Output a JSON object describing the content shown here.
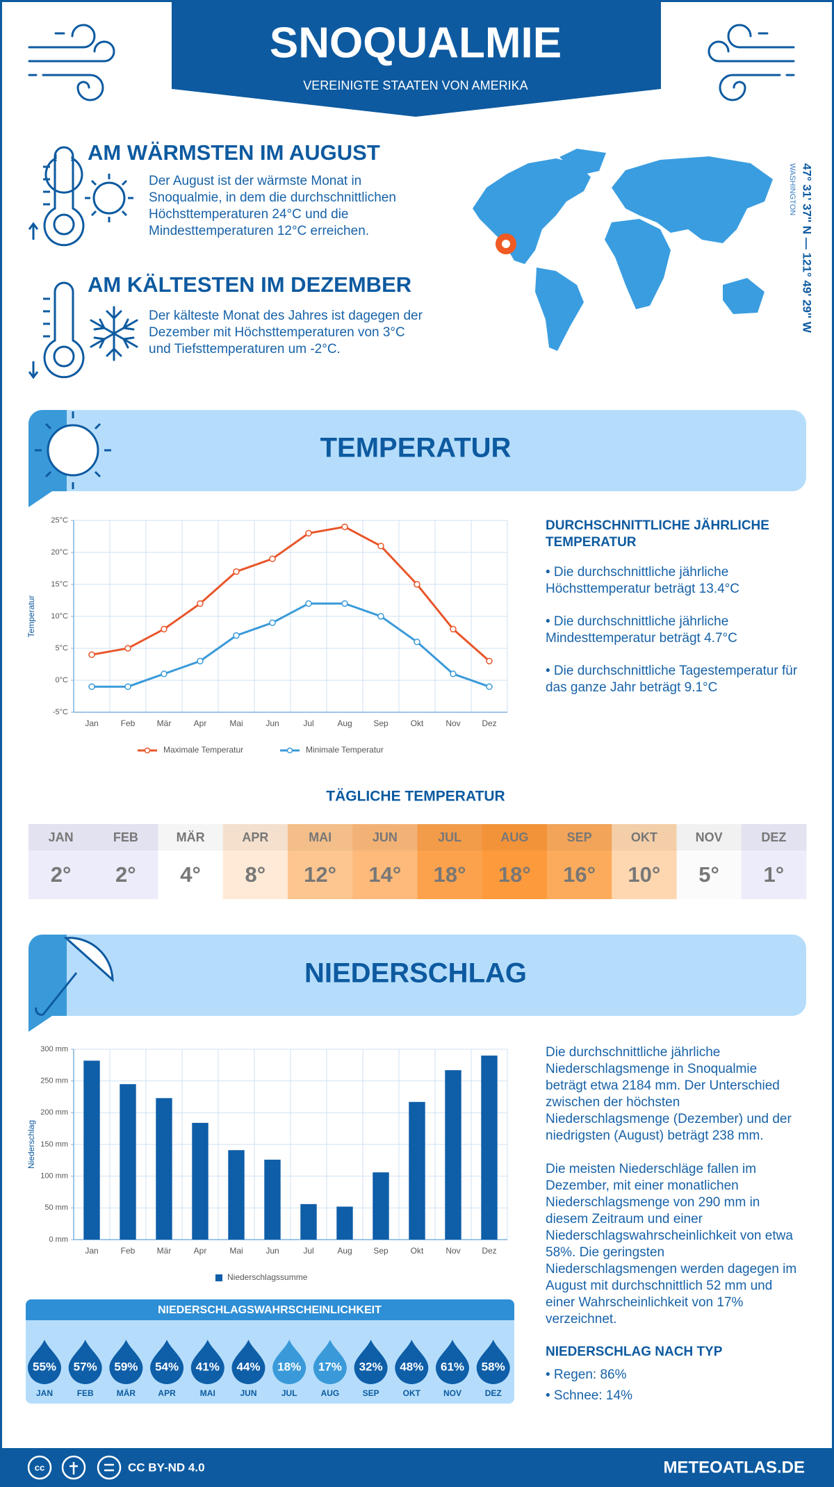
{
  "header": {
    "title": "SNOQUALMIE",
    "subtitle": "VEREINIGTE STAATEN VON AMERIKA"
  },
  "warmest": {
    "title": "AM WÄRMSTEN IM AUGUST",
    "text": "Der August ist der wärmste Monat in Snoqualmie, in dem die durchschnittlichen Höchsttemperaturen 24°C und die Mindesttemperaturen 12°C erreichen."
  },
  "coldest": {
    "title": "AM KÄLTESTEN IM DEZEMBER",
    "text": "Der kälteste Monat des Jahres ist dagegen der Dezember mit Höchsttemperaturen von 3°C und Tiefsttemperaturen um -2°C."
  },
  "location": {
    "coordinates": "47° 31' 37'' N — 121° 49' 29'' W",
    "region": "WASHINGTON"
  },
  "temperature_section": {
    "title": "TEMPERATUR"
  },
  "chart_data": [
    {
      "type": "line",
      "y_label": "Temperatur",
      "categories": [
        "Jan",
        "Feb",
        "Mär",
        "Apr",
        "Mai",
        "Jun",
        "Jul",
        "Aug",
        "Sep",
        "Okt",
        "Nov",
        "Dez"
      ],
      "series": [
        {
          "name": "Maximale Temperatur",
          "color": "#e8562a",
          "values": [
            4,
            5,
            8,
            12,
            17,
            19,
            23,
            24,
            21,
            15,
            8,
            3
          ]
        },
        {
          "name": "Minimale Temperatur",
          "color": "#3a9ad9",
          "values": [
            -1,
            -1,
            1,
            3,
            7,
            9,
            12,
            12,
            10,
            6,
            1,
            -1
          ]
        }
      ],
      "ylim": [
        -5,
        25
      ],
      "yticks": [
        {
          "value": -5,
          "label": "-5°C"
        },
        {
          "value": 0,
          "label": "0°C"
        },
        {
          "value": 5,
          "label": "5°C"
        },
        {
          "value": 10,
          "label": "10°C"
        },
        {
          "value": 15,
          "label": "15°C"
        },
        {
          "value": 20,
          "label": "20°C"
        },
        {
          "value": 25,
          "label": "25°C"
        }
      ],
      "grid": true
    },
    {
      "type": "bar",
      "y_label": "Niederschlag",
      "categories": [
        "Jan",
        "Feb",
        "Mär",
        "Apr",
        "Mai",
        "Jun",
        "Jul",
        "Aug",
        "Sep",
        "Okt",
        "Nov",
        "Dez"
      ],
      "series": [
        {
          "name": "Niederschlagssumme",
          "color": "#0e5ea8",
          "values": [
            282,
            245,
            223,
            184,
            141,
            126,
            56,
            52,
            106,
            217,
            267,
            290
          ]
        }
      ],
      "ylim": [
        0,
        300
      ],
      "yticks": [
        {
          "value": 0,
          "label": "0 mm"
        },
        {
          "value": 50,
          "label": "50 mm"
        },
        {
          "value": 100,
          "label": "100 mm"
        },
        {
          "value": 150,
          "label": "150 mm"
        },
        {
          "value": 200,
          "label": "200 mm"
        },
        {
          "value": 250,
          "label": "250 mm"
        },
        {
          "value": 300,
          "label": "300 mm"
        }
      ],
      "grid": true
    }
  ],
  "annual_temperature": {
    "title": "DURCHSCHNITTLICHE JÄHRLICHE TEMPERATUR",
    "items": [
      "• Die durchschnittliche jährliche Höchsttemperatur beträgt 13.4°C",
      "• Die durchschnittliche jährliche Mindesttemperatur beträgt 4.7°C",
      "• Die durchschnittliche Tagestemperatur für das ganze Jahr beträgt 9.1°C"
    ]
  },
  "daily_temperature": {
    "title": "TÄGLICHE TEMPERATUR",
    "months": [
      "JAN",
      "FEB",
      "MÄR",
      "APR",
      "MAI",
      "JUN",
      "JUL",
      "AUG",
      "SEP",
      "OKT",
      "NOV",
      "DEZ"
    ],
    "values": [
      "2°",
      "2°",
      "4°",
      "8°",
      "12°",
      "14°",
      "18°",
      "18°",
      "16°",
      "10°",
      "5°",
      "1°"
    ],
    "colors": [
      "#ececfa",
      "#ececfa",
      "#ffffff",
      "#feead6",
      "#fdc690",
      "#fdba7a",
      "#fca24c",
      "#fd9a3c",
      "#fcab5c",
      "#fed7b0",
      "#fbfbfb",
      "#ececfa"
    ]
  },
  "precipitation_section": {
    "title": "NIEDERSCHLAG"
  },
  "precipitation_text": {
    "paragraphs": [
      "Die durchschnittliche jährliche Niederschlagsmenge in Snoqualmie beträgt etwa 2184 mm. Der Unterschied zwischen der höchsten Niederschlagsmenge (Dezember) und der niedrigsten (August) beträgt 238 mm.",
      "Die meisten Niederschläge fallen im Dezember, mit einer monatlichen Niederschlagsmenge von 290 mm in diesem Zeitraum und einer Niederschlagswahrscheinlichkeit von etwa 58%. Die geringsten Niederschlagsmengen werden dagegen im August mit durchschnittlich 52 mm und einer Wahrscheinlichkeit von 17% verzeichnet."
    ]
  },
  "probability": {
    "title": "NIEDERSCHLAGSWAHRSCHEINLICHKEIT",
    "months": [
      "JAN",
      "FEB",
      "MÄR",
      "APR",
      "MAI",
      "JUN",
      "JUL",
      "AUG",
      "SEP",
      "OKT",
      "NOV",
      "DEZ"
    ],
    "values": [
      "55%",
      "57%",
      "59%",
      "54%",
      "41%",
      "44%",
      "18%",
      "17%",
      "32%",
      "48%",
      "61%",
      "58%"
    ],
    "colors": [
      "#0e5ea8",
      "#0e5ea8",
      "#0e5ea8",
      "#0e5ea8",
      "#0e5ea8",
      "#0e5ea8",
      "#3a9ad9",
      "#3a9ad9",
      "#0e5ea8",
      "#0e5ea8",
      "#0e5ea8",
      "#0e5ea8"
    ]
  },
  "precipitation_type": {
    "title": "NIEDERSCHLAG NACH TYP",
    "items": [
      "• Regen: 86%",
      "• Schnee: 14%"
    ]
  },
  "footer": {
    "license": "CC BY-ND 4.0",
    "site": "METEOATLAS.DE"
  }
}
